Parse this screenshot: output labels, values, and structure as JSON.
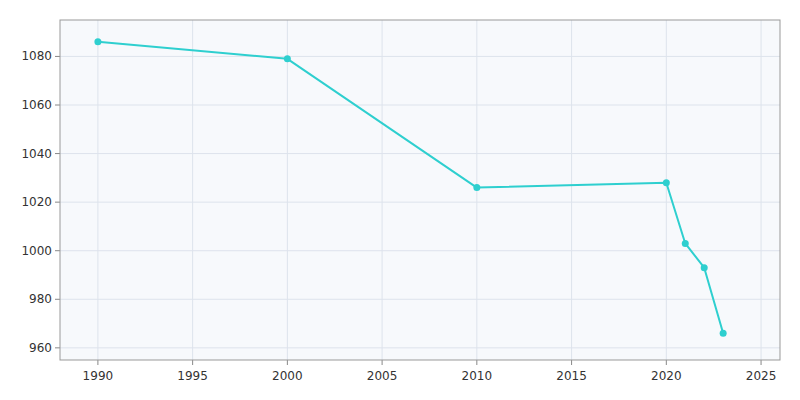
{
  "chart_data": {
    "type": "line",
    "x": [
      1990,
      2000,
      2010,
      2020,
      2021,
      2022,
      2023
    ],
    "values": [
      1086,
      1079,
      1026,
      1028,
      1003,
      993,
      966
    ],
    "color": "#2ecfcf",
    "marker": "circle",
    "xlim": [
      1988,
      2026
    ],
    "ylim": [
      955,
      1095
    ],
    "xticks": [
      1990,
      1995,
      2000,
      2005,
      2010,
      2015,
      2020,
      2025
    ],
    "yticks": [
      960,
      980,
      1000,
      1020,
      1040,
      1060,
      1080
    ],
    "grid": true
  }
}
